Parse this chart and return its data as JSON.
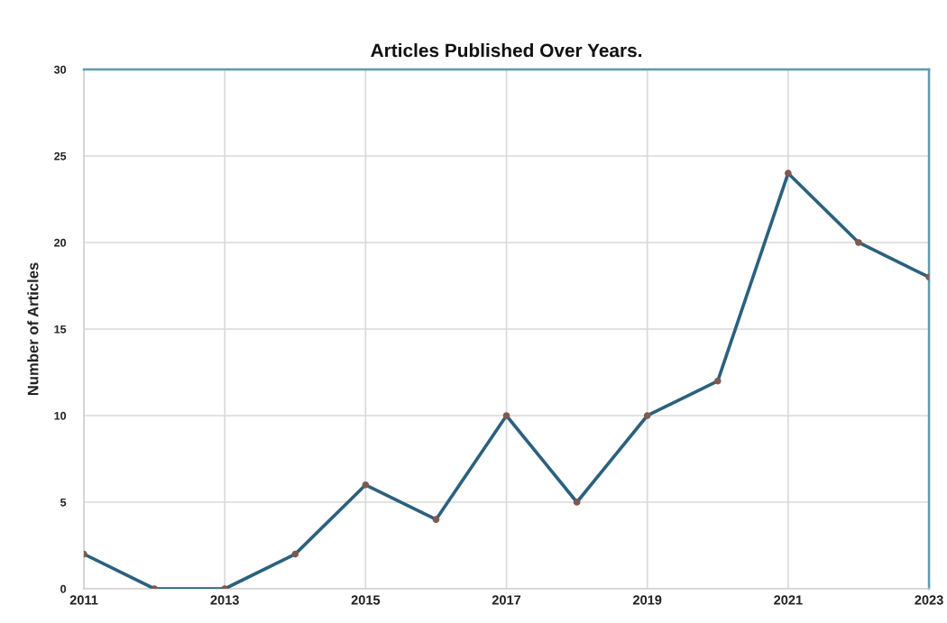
{
  "chart_data": {
    "type": "line",
    "title": "Articles Published Over Years.",
    "ylabel": "Number of Articles",
    "x": [
      2011,
      2012,
      2013,
      2014,
      2015,
      2016,
      2017,
      2018,
      2019,
      2020,
      2021,
      2022,
      2023
    ],
    "series": [
      {
        "color": "#2b617e",
        "values": [
          2,
          0,
          0,
          2,
          6,
          4,
          10,
          5,
          10,
          12,
          24,
          20,
          18
        ]
      }
    ],
    "xlim": [
      2011,
      2023
    ],
    "xticks": [
      2011,
      2013,
      2015,
      2017,
      2019,
      2021,
      2023
    ],
    "ylim": [
      0,
      30
    ],
    "yticks": [
      0,
      5,
      10,
      15,
      20,
      25,
      30
    ],
    "grid": true,
    "marker": "circle",
    "line_style": "solid"
  }
}
